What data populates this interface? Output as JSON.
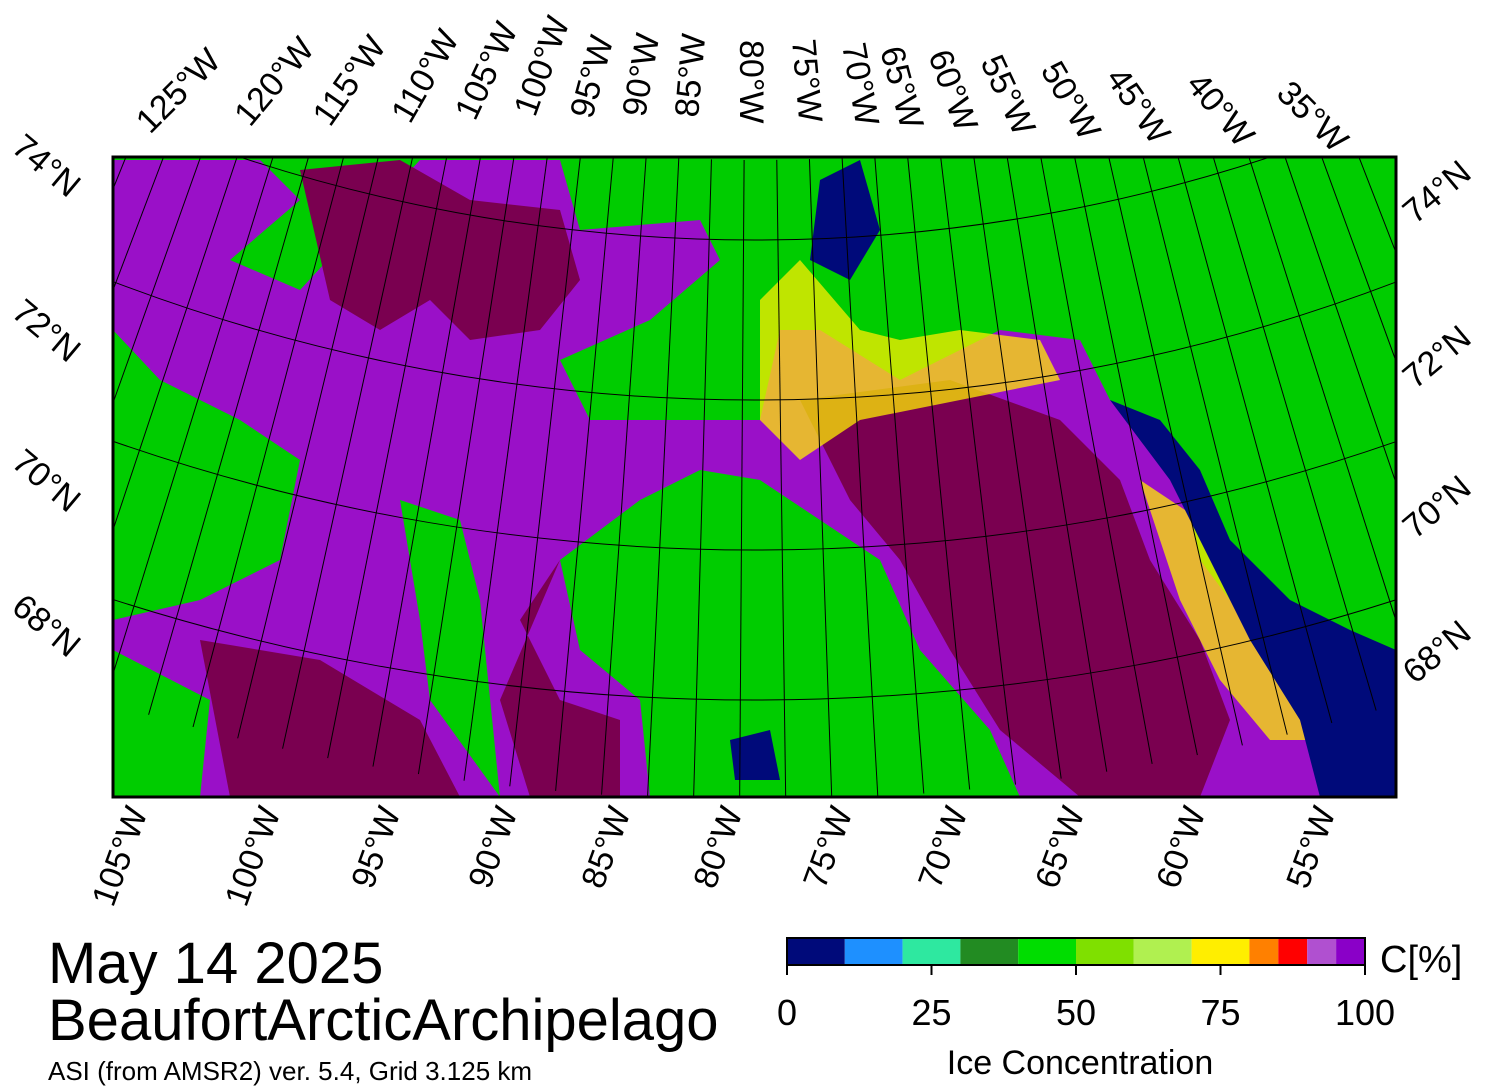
{
  "map": {
    "top_longitude_labels": [
      "125°W",
      "120°W",
      "115°W",
      "110°W",
      "105°W",
      "100°W",
      "95°W",
      "90°W",
      "85°W",
      "80°W",
      "75°W",
      "70°W",
      "65°W",
      "60°W",
      "55°W",
      "50°W",
      "45°W",
      "40°W",
      "35°W"
    ],
    "bottom_longitude_labels": [
      "105°W",
      "100°W",
      "95°W",
      "90°W",
      "85°W",
      "80°W",
      "75°W",
      "70°W",
      "65°W",
      "60°W",
      "55°W"
    ],
    "left_latitude_labels": [
      "74°N",
      "72°N",
      "70°N",
      "68°N"
    ],
    "right_latitude_labels": [
      "74°N",
      "72°N",
      "70°N",
      "68°N"
    ]
  },
  "date": "May 14 2025",
  "region": "BeaufortArcticArchipelago",
  "subtitle": "ASI (from AMSR2) ver. 5.4,  Grid 3.125 km",
  "colorbar": {
    "unit": "C[%]",
    "label": "Ice Concentration",
    "bins": [
      0,
      10,
      20,
      30,
      40,
      50,
      60,
      70,
      80,
      85,
      90,
      95,
      100
    ],
    "colors": [
      "#000a7a",
      "#1e90ff",
      "#2ee8a0",
      "#228b22",
      "#00dd00",
      "#7fe000",
      "#b0f050",
      "#ffee00",
      "#ff8000",
      "#ff0000",
      "#b050d0",
      "#8a00c8"
    ],
    "ticks": [
      0,
      25,
      50,
      75,
      100
    ]
  }
}
